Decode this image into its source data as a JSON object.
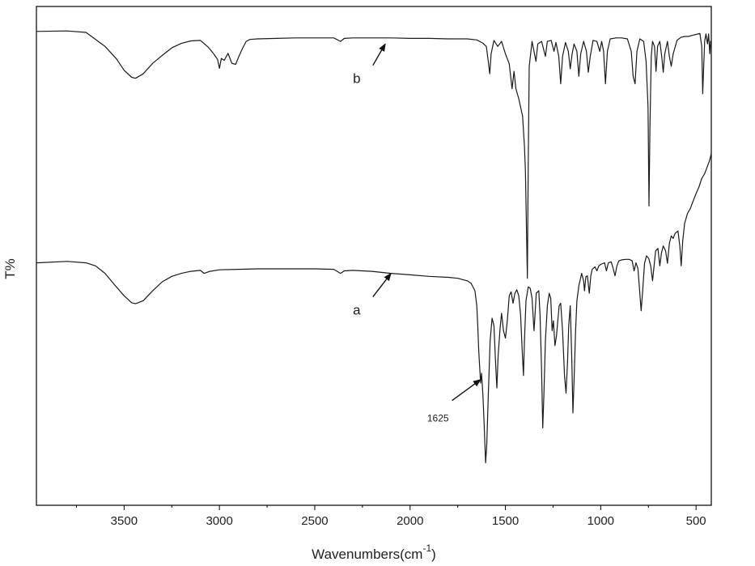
{
  "chart_data": {
    "type": "line",
    "title": "",
    "xlabel_main": "Wavenumbers(cm",
    "xlabel_sup": "-1",
    "xlabel_end": ")",
    "ylabel": "T%",
    "xlim": [
      3960,
      420
    ],
    "x_reversed": true,
    "ylim": [
      0,
      100
    ],
    "x_ticks": [
      3500,
      3000,
      2500,
      2000,
      1500,
      1000,
      500
    ],
    "x_tick_labels": [
      "3500",
      "3000",
      "2500",
      "2000",
      "1500",
      "1000",
      "500"
    ],
    "y_ticks_shown": false,
    "grid": false,
    "colors": {
      "line": "#1a1a1a",
      "axis": "#000000"
    },
    "series": [
      {
        "name": "b",
        "points": [
          [
            3960,
            95.0
          ],
          [
            3800,
            95.1
          ],
          [
            3700,
            94.8
          ],
          [
            3600,
            92.0
          ],
          [
            3540,
            89.5
          ],
          [
            3500,
            87.2
          ],
          [
            3460,
            85.8
          ],
          [
            3440,
            85.6
          ],
          [
            3400,
            86.5
          ],
          [
            3350,
            88.6
          ],
          [
            3300,
            90.2
          ],
          [
            3250,
            91.7
          ],
          [
            3200,
            92.6
          ],
          [
            3150,
            93.1
          ],
          [
            3100,
            93.2
          ],
          [
            3060,
            91.9
          ],
          [
            3030,
            90.5
          ],
          [
            3010,
            89.4
          ],
          [
            3000,
            87.6
          ],
          [
            2990,
            89.6
          ],
          [
            2975,
            89.2
          ],
          [
            2955,
            90.6
          ],
          [
            2935,
            88.6
          ],
          [
            2915,
            88.4
          ],
          [
            2900,
            89.8
          ],
          [
            2880,
            91.5
          ],
          [
            2860,
            93.0
          ],
          [
            2840,
            93.4
          ],
          [
            2800,
            93.5
          ],
          [
            2700,
            93.6
          ],
          [
            2600,
            93.7
          ],
          [
            2500,
            93.7
          ],
          [
            2400,
            93.7
          ],
          [
            2365,
            93.0
          ],
          [
            2345,
            93.6
          ],
          [
            2300,
            93.7
          ],
          [
            2200,
            93.7
          ],
          [
            2100,
            93.7
          ],
          [
            2000,
            93.6
          ],
          [
            1900,
            93.6
          ],
          [
            1800,
            93.5
          ],
          [
            1700,
            93.5
          ],
          [
            1650,
            93.3
          ],
          [
            1620,
            92.7
          ],
          [
            1600,
            92.0
          ],
          [
            1590,
            89.0
          ],
          [
            1582,
            86.5
          ],
          [
            1575,
            90.5
          ],
          [
            1560,
            93.2
          ],
          [
            1540,
            92.0
          ],
          [
            1520,
            93.0
          ],
          [
            1500,
            90.5
          ],
          [
            1480,
            88.5
          ],
          [
            1465,
            83.5
          ],
          [
            1455,
            87.0
          ],
          [
            1445,
            83.5
          ],
          [
            1430,
            81.5
          ],
          [
            1410,
            78.0
          ],
          [
            1400,
            72.0
          ],
          [
            1395,
            67.0
          ],
          [
            1385,
            45.5
          ],
          [
            1380,
            69.0
          ],
          [
            1375,
            88.0
          ],
          [
            1360,
            93.0
          ],
          [
            1340,
            89.0
          ],
          [
            1330,
            92.5
          ],
          [
            1310,
            93.0
          ],
          [
            1290,
            90.0
          ],
          [
            1280,
            93.0
          ],
          [
            1260,
            93.2
          ],
          [
            1245,
            91.0
          ],
          [
            1235,
            92.8
          ],
          [
            1220,
            90.0
          ],
          [
            1210,
            84.5
          ],
          [
            1200,
            90.0
          ],
          [
            1185,
            92.8
          ],
          [
            1170,
            91.0
          ],
          [
            1160,
            87.5
          ],
          [
            1150,
            90.5
          ],
          [
            1140,
            92.5
          ],
          [
            1125,
            91.0
          ],
          [
            1115,
            86.0
          ],
          [
            1105,
            90.5
          ],
          [
            1090,
            93.0
          ],
          [
            1075,
            91.0
          ],
          [
            1065,
            86.8
          ],
          [
            1055,
            90.0
          ],
          [
            1040,
            93.2
          ],
          [
            1020,
            93.0
          ],
          [
            1005,
            91.0
          ],
          [
            995,
            93.0
          ],
          [
            985,
            91.0
          ],
          [
            975,
            84.5
          ],
          [
            965,
            91.0
          ],
          [
            950,
            93.5
          ],
          [
            920,
            93.7
          ],
          [
            890,
            93.7
          ],
          [
            860,
            93.5
          ],
          [
            840,
            91.0
          ],
          [
            830,
            86.0
          ],
          [
            820,
            84.5
          ],
          [
            810,
            91.0
          ],
          [
            795,
            93.5
          ],
          [
            775,
            93.0
          ],
          [
            762,
            89.0
          ],
          [
            752,
            80.0
          ],
          [
            747,
            60.0
          ],
          [
            742,
            75.0
          ],
          [
            735,
            90.0
          ],
          [
            728,
            93.0
          ],
          [
            718,
            92.0
          ],
          [
            710,
            87.0
          ],
          [
            702,
            92.0
          ],
          [
            690,
            93.0
          ],
          [
            680,
            90.0
          ],
          [
            672,
            86.8
          ],
          [
            664,
            90.5
          ],
          [
            650,
            93.0
          ],
          [
            640,
            90.0
          ],
          [
            630,
            88.0
          ],
          [
            620,
            90.5
          ],
          [
            600,
            93.2
          ],
          [
            580,
            93.8
          ],
          [
            560,
            94.0
          ],
          [
            540,
            94.0
          ],
          [
            520,
            94.2
          ],
          [
            500,
            94.4
          ],
          [
            480,
            94.6
          ],
          [
            470,
            92.0
          ],
          [
            465,
            82.5
          ],
          [
            460,
            88.0
          ],
          [
            455,
            93.0
          ],
          [
            448,
            94.5
          ],
          [
            440,
            92.5
          ],
          [
            434,
            94.5
          ],
          [
            428,
            90.5
          ],
          [
            424,
            93.0
          ],
          [
            420,
            92.0
          ]
        ]
      },
      {
        "name": "a",
        "points": [
          [
            3960,
            48.6
          ],
          [
            3800,
            48.9
          ],
          [
            3700,
            48.6
          ],
          [
            3650,
            48.0
          ],
          [
            3600,
            46.5
          ],
          [
            3550,
            44.2
          ],
          [
            3500,
            42.0
          ],
          [
            3460,
            40.6
          ],
          [
            3440,
            40.4
          ],
          [
            3400,
            41.0
          ],
          [
            3350,
            43.0
          ],
          [
            3300,
            44.8
          ],
          [
            3250,
            45.9
          ],
          [
            3200,
            46.5
          ],
          [
            3150,
            46.9
          ],
          [
            3100,
            47.1
          ],
          [
            3080,
            46.5
          ],
          [
            3050,
            46.9
          ],
          [
            3000,
            47.2
          ],
          [
            2900,
            47.3
          ],
          [
            2800,
            47.4
          ],
          [
            2700,
            47.4
          ],
          [
            2600,
            47.4
          ],
          [
            2500,
            47.4
          ],
          [
            2400,
            47.3
          ],
          [
            2365,
            46.5
          ],
          [
            2345,
            47.0
          ],
          [
            2300,
            47.1
          ],
          [
            2200,
            46.9
          ],
          [
            2100,
            46.5
          ],
          [
            2000,
            46.2
          ],
          [
            1900,
            45.9
          ],
          [
            1800,
            45.7
          ],
          [
            1750,
            45.5
          ],
          [
            1700,
            45.0
          ],
          [
            1680,
            44.5
          ],
          [
            1660,
            43.0
          ],
          [
            1650,
            40.0
          ],
          [
            1645,
            36.0
          ],
          [
            1640,
            31.0
          ],
          [
            1630,
            24.5
          ],
          [
            1625,
            26.5
          ],
          [
            1618,
            22.0
          ],
          [
            1610,
            15.0
          ],
          [
            1604,
            8.5
          ],
          [
            1598,
            12.0
          ],
          [
            1590,
            22.0
          ],
          [
            1580,
            33.0
          ],
          [
            1570,
            37.5
          ],
          [
            1560,
            36.0
          ],
          [
            1552,
            29.0
          ],
          [
            1545,
            23.5
          ],
          [
            1538,
            30.0
          ],
          [
            1528,
            35.5
          ],
          [
            1520,
            38.5
          ],
          [
            1510,
            35.0
          ],
          [
            1500,
            33.5
          ],
          [
            1490,
            37.0
          ],
          [
            1480,
            42.0
          ],
          [
            1470,
            42.8
          ],
          [
            1460,
            40.5
          ],
          [
            1450,
            42.5
          ],
          [
            1440,
            43.2
          ],
          [
            1430,
            42.0
          ],
          [
            1420,
            38.0
          ],
          [
            1412,
            31.0
          ],
          [
            1405,
            26.0
          ],
          [
            1400,
            33.0
          ],
          [
            1392,
            41.0
          ],
          [
            1380,
            43.8
          ],
          [
            1370,
            43.5
          ],
          [
            1360,
            41.5
          ],
          [
            1350,
            35.0
          ],
          [
            1345,
            38.0
          ],
          [
            1338,
            42.5
          ],
          [
            1325,
            43.0
          ],
          [
            1318,
            38.0
          ],
          [
            1310,
            27.0
          ],
          [
            1304,
            15.5
          ],
          [
            1298,
            22.0
          ],
          [
            1290,
            33.0
          ],
          [
            1280,
            40.0
          ],
          [
            1270,
            42.5
          ],
          [
            1262,
            41.5
          ],
          [
            1255,
            35.0
          ],
          [
            1248,
            37.0
          ],
          [
            1240,
            32.0
          ],
          [
            1232,
            34.0
          ],
          [
            1225,
            37.0
          ],
          [
            1218,
            40.0
          ],
          [
            1210,
            40.5
          ],
          [
            1200,
            35.0
          ],
          [
            1190,
            26.0
          ],
          [
            1182,
            22.5
          ],
          [
            1174,
            29.0
          ],
          [
            1168,
            36.0
          ],
          [
            1160,
            40.0
          ],
          [
            1152,
            30.0
          ],
          [
            1146,
            18.5
          ],
          [
            1140,
            25.0
          ],
          [
            1132,
            35.0
          ],
          [
            1125,
            41.0
          ],
          [
            1115,
            44.0
          ],
          [
            1100,
            46.5
          ],
          [
            1090,
            45.0
          ],
          [
            1085,
            43.0
          ],
          [
            1078,
            45.8
          ],
          [
            1070,
            46.0
          ],
          [
            1060,
            42.5
          ],
          [
            1052,
            46.0
          ],
          [
            1045,
            47.3
          ],
          [
            1030,
            47.8
          ],
          [
            1020,
            47.0
          ],
          [
            1010,
            48.0
          ],
          [
            1000,
            48.3
          ],
          [
            980,
            48.6
          ],
          [
            970,
            47.0
          ],
          [
            960,
            48.6
          ],
          [
            945,
            48.8
          ],
          [
            935,
            47.5
          ],
          [
            925,
            46.0
          ],
          [
            915,
            48.0
          ],
          [
            905,
            49.0
          ],
          [
            890,
            49.2
          ],
          [
            870,
            49.3
          ],
          [
            850,
            49.3
          ],
          [
            835,
            49.0
          ],
          [
            825,
            47.0
          ],
          [
            815,
            48.6
          ],
          [
            805,
            47.5
          ],
          [
            795,
            42.5
          ],
          [
            788,
            39.0
          ],
          [
            780,
            43.0
          ],
          [
            770,
            48.5
          ],
          [
            760,
            50.0
          ],
          [
            748,
            49.5
          ],
          [
            738,
            48.0
          ],
          [
            728,
            45.0
          ],
          [
            720,
            48.0
          ],
          [
            712,
            51.0
          ],
          [
            700,
            51.5
          ],
          [
            690,
            48.0
          ],
          [
            682,
            50.5
          ],
          [
            672,
            52.0
          ],
          [
            660,
            51.0
          ],
          [
            650,
            48.5
          ],
          [
            640,
            52.5
          ],
          [
            630,
            54.0
          ],
          [
            620,
            53.5
          ],
          [
            610,
            54.5
          ],
          [
            595,
            55.0
          ],
          [
            585,
            52.0
          ],
          [
            578,
            48.0
          ],
          [
            570,
            53.0
          ],
          [
            560,
            56.5
          ],
          [
            545,
            58.5
          ],
          [
            530,
            59.5
          ],
          [
            515,
            61.0
          ],
          [
            500,
            62.5
          ],
          [
            485,
            63.8
          ],
          [
            470,
            65.5
          ],
          [
            455,
            66.5
          ],
          [
            440,
            68.0
          ],
          [
            430,
            69.0
          ],
          [
            420,
            70.5
          ]
        ]
      }
    ],
    "annotations": [
      {
        "text": "b",
        "arrow_from": [
          2195,
          88.2
        ],
        "arrow_to": [
          2130,
          92.5
        ]
      },
      {
        "text": "a",
        "arrow_from": [
          2195,
          41.8
        ],
        "arrow_to": [
          2100,
          46.5
        ]
      },
      {
        "text": "1625",
        "arrow_from": [
          1780,
          21.0
        ],
        "arrow_to": [
          1630,
          25.2
        ]
      }
    ]
  }
}
